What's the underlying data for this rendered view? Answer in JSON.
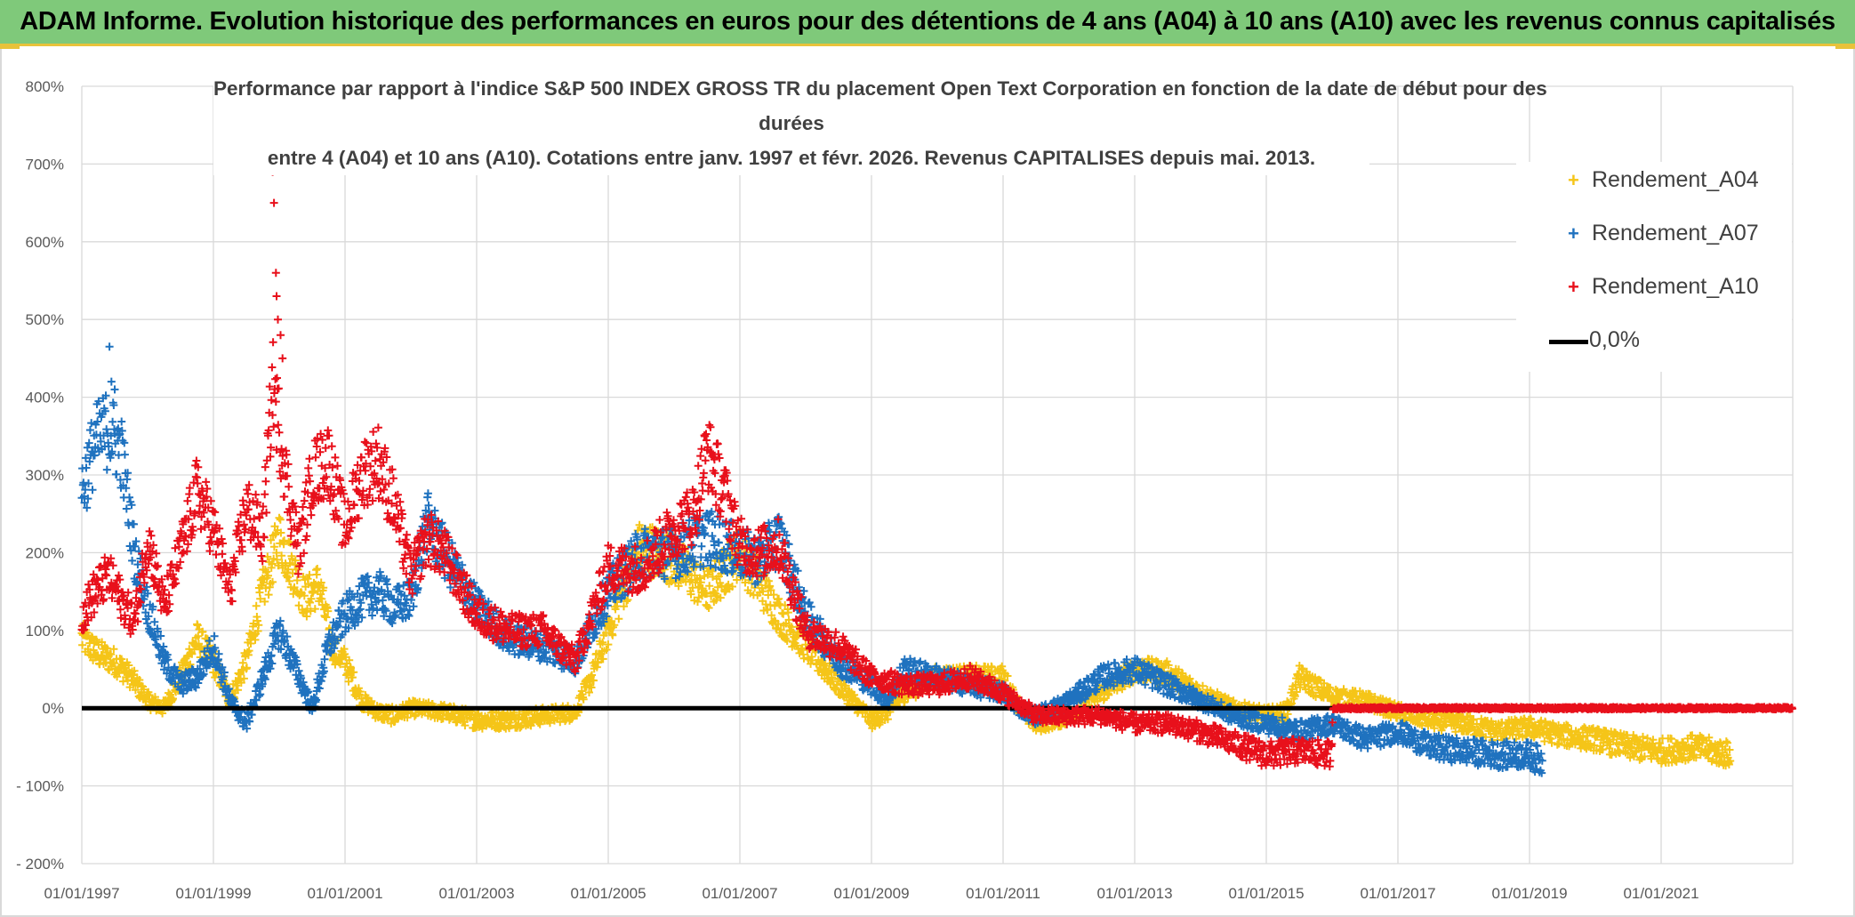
{
  "page_title": "ADAM Informe. Evolution historique des performances en euros pour des détentions de 4 ans (A04) à 10 ans (A10) avec les revenus connus capitalisés",
  "colors": {
    "banner": "#7fc97a",
    "accent": "#e8c23a",
    "a04": "#f5c518",
    "a07": "#1f72bf",
    "a10": "#e8101b",
    "zero": "#000000",
    "grid": "#d9d9d9"
  },
  "chart_data": {
    "type": "scatter",
    "title_lines": [
      "Performance par rapport à l'indice S&P 500 INDEX GROSS TR  du placement Open Text Corporation en fonction de la date de début pour des",
      "durées",
      "entre 4 (A04) et 10 ans (A10). Cotations entre janv. 1997 et févr. 2026. Revenus CAPITALISES depuis mai. 2013."
    ],
    "xlabel": "",
    "ylabel": "",
    "x_range_years": [
      1997.0,
      2023.0
    ],
    "x_tick_labels": [
      "01/01/1997",
      "01/01/1999",
      "01/01/2001",
      "01/01/2003",
      "01/01/2005",
      "01/01/2007",
      "01/01/2009",
      "01/01/2011",
      "01/01/2013",
      "01/01/2015",
      "01/01/2017",
      "01/01/2019",
      "01/01/2021"
    ],
    "x_tick_years": [
      1997,
      1999,
      2001,
      2003,
      2005,
      2007,
      2009,
      2011,
      2013,
      2015,
      2017,
      2019,
      2021
    ],
    "ylim": [
      -200,
      800
    ],
    "y_ticks": [
      -200,
      -100,
      0,
      100,
      200,
      300,
      400,
      500,
      600,
      700,
      800
    ],
    "y_tick_labels": [
      "- 200%",
      "- 100%",
      "0%",
      "100%",
      "200%",
      "300%",
      "400%",
      "500%",
      "600%",
      "700%",
      "800%"
    ],
    "legend": [
      {
        "name": "Rendement_A04",
        "marker": "+",
        "color": "#f5c518"
      },
      {
        "name": "Rendement_A07",
        "marker": "+",
        "color": "#1f72bf"
      },
      {
        "name": "Rendement_A10",
        "marker": "+",
        "color": "#e8101b"
      },
      {
        "name": "0,0%",
        "marker": "line",
        "color": "#000000"
      }
    ],
    "series": [
      {
        "name": "Rendement_A04",
        "color": "#f5c518",
        "end_year": 2022.05,
        "x": [
          1997.0,
          1997.25,
          1997.5,
          1997.75,
          1998.0,
          1998.25,
          1998.5,
          1998.75,
          1999.0,
          1999.25,
          1999.5,
          1999.75,
          2000.0,
          2000.2,
          2000.4,
          2000.6,
          2000.8,
          2001.0,
          2001.25,
          2001.5,
          2001.75,
          2002.0,
          2002.5,
          2003.0,
          2003.5,
          2004.0,
          2004.5,
          2004.75,
          2005.0,
          2005.25,
          2005.5,
          2005.75,
          2006.0,
          2006.5,
          2007.0,
          2007.3,
          2007.6,
          2008.0,
          2008.5,
          2009.0,
          2009.25,
          2009.5,
          2010.0,
          2010.5,
          2011.0,
          2011.25,
          2011.5,
          2012.0,
          2012.5,
          2013.0,
          2013.5,
          2014.0,
          2014.5,
          2015.0,
          2015.3,
          2015.5,
          2016.0,
          2016.5,
          2017.0,
          2017.5,
          2018.0,
          2018.5,
          2019.0,
          2019.5,
          2020.0,
          2020.5,
          2021.0,
          2021.5,
          2022.05
        ],
        "y": [
          90,
          70,
          60,
          40,
          10,
          0,
          40,
          90,
          60,
          10,
          60,
          150,
          220,
          180,
          140,
          160,
          80,
          60,
          10,
          -5,
          -10,
          0,
          -5,
          -15,
          -15,
          -10,
          -5,
          40,
          100,
          160,
          210,
          200,
          190,
          150,
          200,
          160,
          120,
          80,
          30,
          -15,
          -5,
          20,
          40,
          40,
          40,
          0,
          -20,
          -10,
          20,
          50,
          45,
          20,
          0,
          -10,
          -5,
          40,
          15,
          10,
          -5,
          -15,
          -20,
          -30,
          -25,
          -35,
          -40,
          -50,
          -55,
          -50,
          -60
        ]
      },
      {
        "name": "Rendement_A07",
        "color": "#1f72bf",
        "end_year": 2019.2,
        "x": [
          1997.0,
          1997.2,
          1997.4,
          1997.6,
          1997.8,
          1998.0,
          1998.25,
          1998.5,
          1998.75,
          1999.0,
          1999.25,
          1999.5,
          1999.75,
          2000.0,
          2000.25,
          2000.5,
          2000.75,
          2001.0,
          2001.25,
          2001.5,
          2001.75,
          2002.0,
          2002.25,
          2002.5,
          2003.0,
          2003.5,
          2004.0,
          2004.5,
          2005.0,
          2005.5,
          2006.0,
          2006.5,
          2007.0,
          2007.3,
          2007.6,
          2008.0,
          2008.5,
          2009.0,
          2009.25,
          2009.5,
          2010.0,
          2010.5,
          2011.0,
          2011.25,
          2011.5,
          2012.0,
          2012.5,
          2013.0,
          2013.5,
          2014.0,
          2014.5,
          2015.0,
          2015.5,
          2016.0,
          2016.5,
          2017.0,
          2017.5,
          2018.0,
          2018.5,
          2019.0,
          2019.2
        ],
        "y": [
          280,
          340,
          360,
          330,
          200,
          130,
          60,
          30,
          40,
          80,
          10,
          -20,
          40,
          100,
          50,
          0,
          80,
          120,
          140,
          150,
          130,
          140,
          240,
          200,
          130,
          90,
          80,
          60,
          150,
          200,
          200,
          220,
          200,
          190,
          220,
          120,
          60,
          30,
          10,
          50,
          40,
          30,
          20,
          0,
          -10,
          10,
          40,
          50,
          30,
          10,
          -10,
          -20,
          -30,
          -20,
          -40,
          -30,
          -50,
          -55,
          -60,
          -60,
          -70
        ]
      },
      {
        "name": "Rendement_A10",
        "color": "#e8101b",
        "end_year": 2023.0,
        "x": [
          1997.0,
          1997.2,
          1997.4,
          1997.6,
          1997.8,
          1998.0,
          1998.25,
          1998.5,
          1998.75,
          1999.0,
          1999.25,
          1999.5,
          1999.75,
          1999.9,
          2000.1,
          2000.3,
          2000.5,
          2000.75,
          2001.0,
          2001.25,
          2001.5,
          2001.75,
          2002.0,
          2002.25,
          2002.5,
          2003.0,
          2003.5,
          2004.0,
          2004.5,
          2005.0,
          2005.5,
          2006.0,
          2006.3,
          2006.5,
          2006.75,
          2007.0,
          2007.3,
          2007.6,
          2008.0,
          2008.5,
          2009.0,
          2009.5,
          2010.0,
          2010.5,
          2011.0,
          2011.5,
          2012.0,
          2012.5,
          2013.0,
          2013.5,
          2014.0,
          2014.5,
          2015.0,
          2015.5,
          2016.0,
          2016.01,
          2017.0,
          2018.0,
          2019.0,
          2020.0,
          2021.0,
          2022.0,
          2023.0
        ],
        "y": [
          120,
          150,
          170,
          140,
          110,
          220,
          130,
          200,
          280,
          230,
          150,
          260,
          220,
          420,
          300,
          200,
          300,
          320,
          230,
          300,
          320,
          260,
          170,
          220,
          200,
          120,
          100,
          100,
          60,
          180,
          180,
          230,
          250,
          330,
          280,
          210,
          200,
          210,
          100,
          80,
          40,
          30,
          30,
          40,
          20,
          -10,
          -10,
          -10,
          -20,
          -20,
          -30,
          -45,
          -60,
          -55,
          -60,
          0,
          0,
          0,
          0,
          0,
          0,
          0,
          0
        ]
      }
    ]
  }
}
